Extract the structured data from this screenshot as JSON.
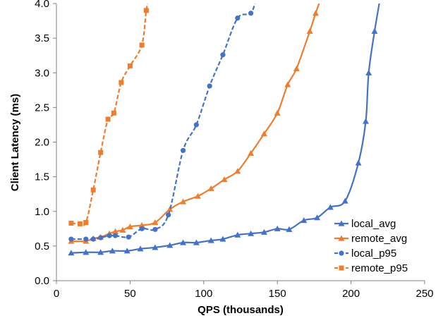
{
  "chart_data": {
    "type": "line",
    "xlabel": "QPS (thousands)",
    "ylabel": "Client Latency (ms)",
    "xlim": [
      0,
      250
    ],
    "ylim": [
      0,
      4.0
    ],
    "x_ticks": [
      "0",
      "50",
      "100",
      "150",
      "200",
      "250"
    ],
    "y_ticks": [
      "0.0",
      "0.5",
      "1.0",
      "1.5",
      "2.0",
      "2.5",
      "3.0",
      "3.5",
      "4.0"
    ],
    "grid": false,
    "legend_position": "bottom-right",
    "series": [
      {
        "name": "local_avg",
        "color": "#4472C4",
        "marker": "triangle",
        "dashed": false,
        "points": [
          [
            10,
            0.4
          ],
          [
            20,
            0.41
          ],
          [
            30,
            0.41
          ],
          [
            38,
            0.43
          ],
          [
            48,
            0.43
          ],
          [
            57,
            0.46
          ],
          [
            67,
            0.48
          ],
          [
            77,
            0.51
          ],
          [
            86,
            0.55
          ],
          [
            95,
            0.55
          ],
          [
            105,
            0.58
          ],
          [
            113,
            0.6
          ],
          [
            123,
            0.66
          ],
          [
            132,
            0.68
          ],
          [
            141,
            0.7
          ],
          [
            150,
            0.75
          ],
          [
            158,
            0.74
          ],
          [
            168,
            0.87
          ],
          [
            177,
            0.91
          ],
          [
            186,
            1.06
          ],
          [
            196,
            1.15
          ],
          [
            205,
            1.7
          ],
          [
            210,
            2.3
          ],
          [
            212,
            3.0
          ],
          [
            216,
            3.6
          ],
          [
            220,
            4.1
          ]
        ]
      },
      {
        "name": "remote_avg",
        "color": "#ED7D31",
        "marker": "triangle",
        "dashed": false,
        "points": [
          [
            10,
            0.57
          ],
          [
            20,
            0.57
          ],
          [
            25,
            0.61
          ],
          [
            30,
            0.63
          ],
          [
            36,
            0.68
          ],
          [
            40,
            0.71
          ],
          [
            45,
            0.73
          ],
          [
            50,
            0.78
          ],
          [
            58,
            0.8
          ],
          [
            67,
            0.84
          ],
          [
            77,
            1.03
          ],
          [
            86,
            1.14
          ],
          [
            96,
            1.22
          ],
          [
            105,
            1.33
          ],
          [
            114,
            1.46
          ],
          [
            123,
            1.58
          ],
          [
            132,
            1.84
          ],
          [
            141,
            2.12
          ],
          [
            150,
            2.42
          ],
          [
            157,
            2.83
          ],
          [
            163,
            3.06
          ],
          [
            172,
            3.6
          ],
          [
            176,
            3.86
          ],
          [
            180,
            4.1
          ]
        ]
      },
      {
        "name": "local_p95",
        "color": "#4472C4",
        "marker": "circle",
        "dashed": true,
        "points": [
          [
            10,
            0.6
          ],
          [
            20,
            0.6
          ],
          [
            25,
            0.6
          ],
          [
            30,
            0.62
          ],
          [
            36,
            0.65
          ],
          [
            40,
            0.65
          ],
          [
            49,
            0.63
          ],
          [
            58,
            0.75
          ],
          [
            67,
            0.74
          ],
          [
            76,
            0.95
          ],
          [
            86,
            1.88
          ],
          [
            95,
            2.25
          ],
          [
            104,
            2.81
          ],
          [
            113,
            3.26
          ],
          [
            123,
            3.79
          ],
          [
            132,
            3.86
          ],
          [
            136,
            4.1
          ]
        ]
      },
      {
        "name": "remote_p95",
        "color": "#ED7D31",
        "marker": "square",
        "dashed": true,
        "points": [
          [
            10,
            0.83
          ],
          [
            16,
            0.82
          ],
          [
            20,
            0.84
          ],
          [
            25,
            1.31
          ],
          [
            30,
            1.85
          ],
          [
            35,
            2.33
          ],
          [
            39,
            2.42
          ],
          [
            44,
            2.86
          ],
          [
            50,
            3.1
          ],
          [
            58,
            3.4
          ],
          [
            61,
            3.9
          ],
          [
            63,
            4.1
          ]
        ]
      }
    ]
  }
}
